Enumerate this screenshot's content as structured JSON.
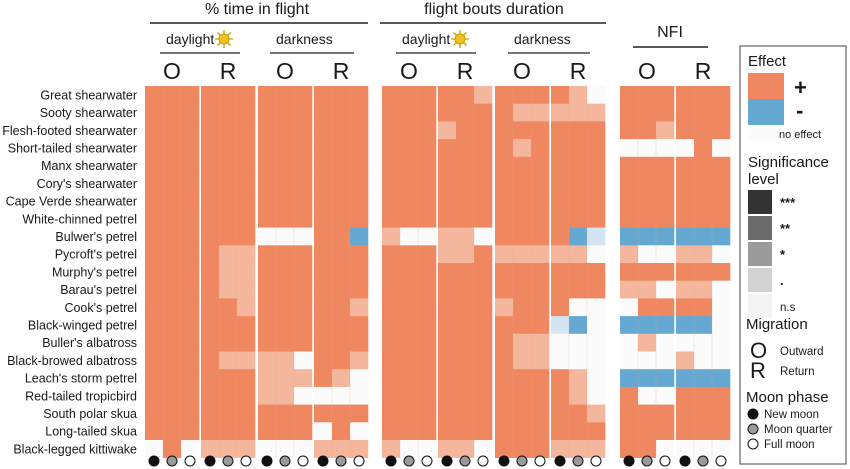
{
  "chart_data": {
    "type": "heatmap",
    "species": [
      "Great shearwater",
      "Sooty shearwater",
      "Flesh-footed shearwater",
      "Short-tailed shearwater",
      "Manx shearwater",
      "Cory's shearwater",
      "Cape Verde shearwater",
      "White-chinned petrel",
      "Bulwer's petrel",
      "Pycroft's petrel",
      "Murphy's petrel",
      "Barau's petrel",
      "Cook's petrel",
      "Black-winged petrel",
      "Buller's albatross",
      "Black-browed albatross",
      "Leach's storm petrel",
      "Red-tailed tropicbird",
      "South polar skua",
      "Long-tailed skua",
      "Black-legged kittiwake"
    ],
    "groups": [
      {
        "title": "% time in flight",
        "subgroups": [
          "daylight",
          "darkness"
        ]
      },
      {
        "title": "flight bouts duration",
        "subgroups": [
          "daylight",
          "darkness"
        ]
      },
      {
        "title": "NFI",
        "subgroups": [
          ""
        ]
      }
    ],
    "migration_labels": [
      "O",
      "R"
    ],
    "moon_phases": [
      "New moon",
      "Moon quarter",
      "Full moon"
    ],
    "colors": {
      "positive": "#ef8760",
      "negative": "#65a8d1",
      "none": "#fbfbfb"
    },
    "code_legend": "P=+, p=+ (weaker), Q=+ (weak), N=-, n=- (weaker), m=- (weak), 0=no effect",
    "blocks": [
      [
        "PPP",
        "PPP",
        "PPP",
        "PPP",
        "PPP",
        "PPP",
        "PPP",
        "PPP",
        "PPP",
        "PPP",
        "PPP",
        "PPP",
        "PPP",
        "PPP",
        "PPP",
        "PPP",
        "PPP",
        "PPP",
        "PPP",
        "PPP",
        "0P0"
      ],
      [
        "PPP",
        "PPP",
        "PPP",
        "PPP",
        "PPP",
        "PPP",
        "PPP",
        "PPP",
        "PPP",
        "Ppp",
        "Ppp",
        "Ppp",
        "PPp",
        "PPP",
        "PPP",
        "Ppp",
        "PPP",
        "PPP",
        "PPP",
        "PPP",
        "ppp"
      ],
      [
        "PPP",
        "PPP",
        "PPP",
        "PPP",
        "PPP",
        "PPP",
        "PPP",
        "PPP",
        "000",
        "PPP",
        "PPP",
        "PPP",
        "PPP",
        "PPP",
        "PPP",
        "pp0",
        "ppp",
        "pp0",
        "PPP",
        "PPP",
        "000"
      ],
      [
        "PPP",
        "PPP",
        "PPP",
        "PPP",
        "PPP",
        "PPP",
        "PPP",
        "PPP",
        "PPN",
        "PPP",
        "PPP",
        "PPP",
        "PPp",
        "PPP",
        "PPP",
        "PPp",
        "Pp0",
        "000",
        "PPP",
        "0P0",
        "ppp"
      ],
      [
        "PPP",
        "PPP",
        "PPP",
        "PPP",
        "PPP",
        "PPP",
        "PPP",
        "PPP",
        "pq0",
        "PPP",
        "PPP",
        "PPP",
        "PPP",
        "PPP",
        "PPP",
        "PPP",
        "PPP",
        "PPP",
        "PPP",
        "PPP",
        "pq0"
      ],
      [
        "PPp",
        "PPP",
        "pPP",
        "PPP",
        "PPP",
        "PPP",
        "PPP",
        "PPP",
        "pp0",
        "ppP",
        "PPP",
        "PPP",
        "PPP",
        "PPP",
        "PPP",
        "PPP",
        "PPP",
        "PPP",
        "PPP",
        "PPP",
        "pp0"
      ],
      [
        "PPP",
        "Ppp",
        "PPP",
        "PpP",
        "PPP",
        "PPP",
        "PPP",
        "PPP",
        "PPP",
        "ppp",
        "PPP",
        "PPP",
        "pPP",
        "PPP",
        "Ppp",
        "Ppp",
        "PPP",
        "PPP",
        "PPP",
        "PPP",
        "PPP"
      ],
      [
        "Pp0",
        "ppp",
        "PPP",
        "PPP",
        "PPP",
        "PPP",
        "PPP",
        "PPP",
        "PNm",
        "pp0",
        "PPP",
        "PPP",
        "P00",
        "mN0",
        "000",
        "000",
        "Pp0",
        "Pp0",
        "PPp",
        "PPP",
        "ppp"
      ],
      [
        "PPP",
        "PPP",
        "PPp",
        "000",
        "PPP",
        "PPP",
        "PPP",
        "PPP",
        "NNN",
        "p00",
        "PPP",
        "pp0",
        "0PP",
        "NNN",
        "0p0",
        "000",
        "NNN",
        "P00",
        "PPP",
        "PPP",
        "PP0"
      ],
      [
        "PPP",
        "PPP",
        "PPP",
        "0P0",
        "PPP",
        "PPP",
        "PPP",
        "PPP",
        "NNN",
        "pp0",
        "PPP",
        "pp0",
        "PP0",
        "NN0",
        "000",
        "p00",
        "NNN",
        "PPP",
        "PPP",
        "PPP",
        "000"
      ]
    ]
  },
  "legend": {
    "effect_title": "Effect",
    "plus_label": "+",
    "minus_label": "-",
    "none_label": "no effect",
    "significance_title_line1": "Significance",
    "significance_title_line2": "level",
    "significance_levels": [
      "***",
      "**",
      "*",
      ".",
      "n.s"
    ],
    "significance_shades": [
      "#333333",
      "#6b6b6b",
      "#9a9a9a",
      "#d3d3d3",
      "#f4f4f4"
    ],
    "migration_title": "Migration",
    "outward_letter": "O",
    "outward_label": "Outward",
    "return_letter": "R",
    "return_label": "Return",
    "moon_title": "Moon phase",
    "moon_labels": [
      "New moon",
      "Moon quarter",
      "Full moon"
    ]
  }
}
